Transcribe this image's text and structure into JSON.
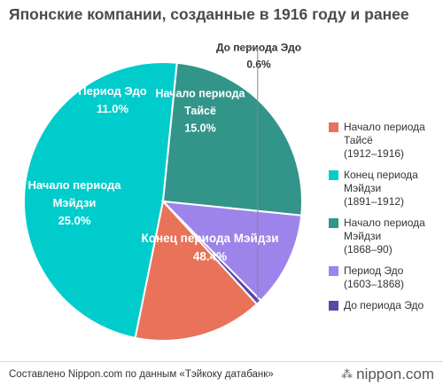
{
  "chart_data": {
    "type": "pie",
    "title": "Японские компании, созданные в 1916 году и ранее",
    "slices": [
      {
        "label_lines": [
          "Конец периода Мэйдзи"
        ],
        "value": 48.4,
        "value_label": "48.4%",
        "color": "#00cccc",
        "text_color": "#ffffff",
        "legend_name": "Конец периода Мэйдзи",
        "legend_period": "(1891–1912)"
      },
      {
        "label_lines": [
          "Начало периода",
          "Мэйдзи"
        ],
        "value": 25.0,
        "value_label": "25.0%",
        "color": "#33948a",
        "text_color": "#ffffff",
        "legend_name": "Начало периода Мэйдзи",
        "legend_period": "(1868–90)"
      },
      {
        "label_lines": [
          "Период Эдо"
        ],
        "value": 11.0,
        "value_label": "11.0%",
        "color": "#9d84ea",
        "text_color": "#ffffff",
        "legend_name": "Период Эдо",
        "legend_period": "(1603–1868)"
      },
      {
        "label_lines": [
          "До периода Эдо"
        ],
        "value": 0.6,
        "value_label": "0.6%",
        "color": "#5a47a8",
        "text_color": "#333333",
        "legend_name": "До периода Эдо",
        "legend_period": ""
      },
      {
        "label_lines": [
          "Начало периода",
          "Тайсё"
        ],
        "value": 15.0,
        "value_label": "15.0%",
        "color": "#e8735a",
        "text_color": "#ffffff",
        "legend_name": "Начало периода Тайсё",
        "legend_period": "(1912–1916)"
      }
    ],
    "legend_placement": "right",
    "legend_order": [
      4,
      0,
      1,
      2,
      3
    ]
  },
  "footer": {
    "source": "Составлено Nippon.com по данным «Тэйкоку датабанк»",
    "logo_text": "nippon.com",
    "logo_icon": "nippon-logo-icon"
  }
}
